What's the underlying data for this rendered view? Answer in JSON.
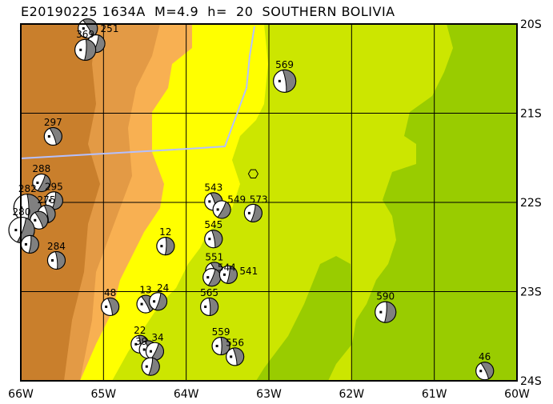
{
  "title": "E20190225 1634A  M=4.9  h=  20  SOUTHERN BOLIVIA",
  "map": {
    "lon_range": [
      -66,
      -60
    ],
    "lat_range": [
      -24,
      -20
    ],
    "grid": true,
    "x_ticks": [
      "66W",
      "65W",
      "64W",
      "63W",
      "62W",
      "61W",
      "60W"
    ],
    "y_ticks": [
      "20S",
      "21S",
      "22S",
      "23S",
      "24S"
    ],
    "colors": {
      "elev_high": "#c97f2c",
      "elev_mid": "#e39a45",
      "elev_low": "#f8b052",
      "yellow": "#ffff00",
      "yellow_green": "#cce600",
      "green": "#99cc00",
      "border": "#b4c0ff",
      "beachball_fill": "#808080"
    },
    "epicenter": {
      "lon": -63.19,
      "lat": -21.68,
      "icon": "hexagon-icon"
    },
    "events": [
      {
        "label": "251",
        "lon": -65.19,
        "lat": -20.05
      },
      {
        "label": "",
        "lon": -65.09,
        "lat": -20.22
      },
      {
        "label": "369",
        "lon": -65.22,
        "lat": -20.29
      },
      {
        "label": "569",
        "lon": -62.81,
        "lat": -20.64
      },
      {
        "label": "297",
        "lon": -65.61,
        "lat": -21.26
      },
      {
        "label": "288",
        "lon": -65.75,
        "lat": -21.78
      },
      {
        "label": "295",
        "lon": -65.6,
        "lat": -21.98
      },
      {
        "label": "282",
        "lon": -65.92,
        "lat": -22.06
      },
      {
        "label": "275",
        "lon": -65.69,
        "lat": -22.13
      },
      {
        "label": "",
        "lon": -65.78,
        "lat": -22.2
      },
      {
        "label": "280",
        "lon": -65.99,
        "lat": -22.31
      },
      {
        "label": "",
        "lon": -65.89,
        "lat": -22.47
      },
      {
        "label": "284",
        "lon": -65.57,
        "lat": -22.65
      },
      {
        "label": "543",
        "lon": -63.67,
        "lat": -21.99
      },
      {
        "label": "549",
        "lon": -63.57,
        "lat": -22.08
      },
      {
        "label": "573",
        "lon": -63.19,
        "lat": -22.12
      },
      {
        "label": "12",
        "lon": -64.25,
        "lat": -22.49
      },
      {
        "label": "545",
        "lon": -63.67,
        "lat": -22.41
      },
      {
        "label": "551",
        "lon": -63.66,
        "lat": -22.77
      },
      {
        "label": "544",
        "lon": -63.69,
        "lat": -22.84
      },
      {
        "label": "541",
        "lon": -63.49,
        "lat": -22.81
      },
      {
        "label": "565",
        "lon": -63.72,
        "lat": -23.17
      },
      {
        "label": "48",
        "lon": -64.92,
        "lat": -23.17
      },
      {
        "label": "13",
        "lon": -64.49,
        "lat": -23.14
      },
      {
        "label": "24",
        "lon": -64.34,
        "lat": -23.11
      },
      {
        "label": "590",
        "lon": -61.59,
        "lat": -23.23
      },
      {
        "label": "22",
        "lon": -64.56,
        "lat": -23.59
      },
      {
        "label": "34",
        "lon": -64.46,
        "lat": -23.65
      },
      {
        "label": "39",
        "lon": -64.38,
        "lat": -23.67
      },
      {
        "label": "",
        "lon": -64.43,
        "lat": -23.84
      },
      {
        "label": "559",
        "lon": -63.58,
        "lat": -23.61
      },
      {
        "label": "556",
        "lon": -63.41,
        "lat": -23.73
      },
      {
        "label": "46",
        "lon": -60.39,
        "lat": -23.89
      }
    ]
  }
}
